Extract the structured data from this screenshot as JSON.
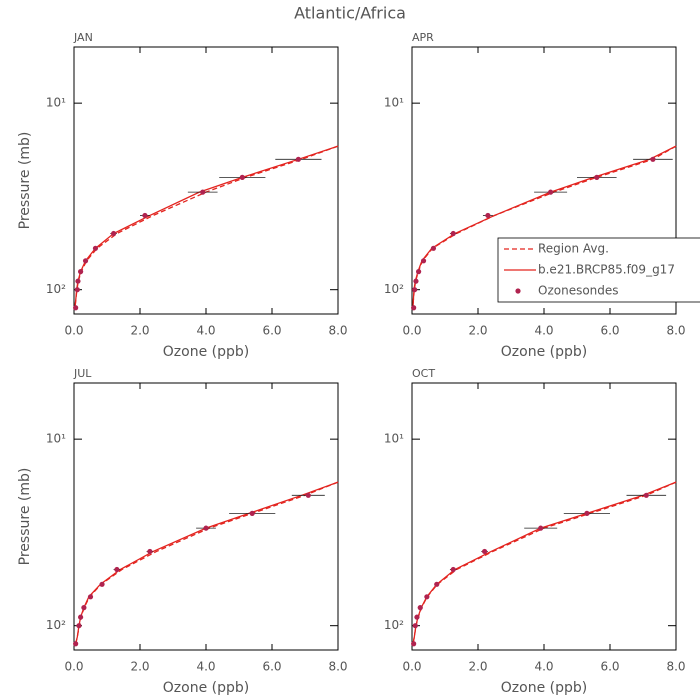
{
  "title": "Atlantic/Africa",
  "chart_data": [
    {
      "type": "line",
      "title": "JAN",
      "xlabel": "Ozone (ppb)",
      "ylabel": "Pressure (mb)",
      "log_y": true,
      "xlim": [
        0,
        8
      ],
      "xticks": [
        {
          "value": 0,
          "label": "0.0"
        },
        {
          "value": 2,
          "label": "2.0"
        },
        {
          "value": 4,
          "label": "4.0"
        },
        {
          "value": 6,
          "label": "6.0"
        },
        {
          "value": 8,
          "label": "8.0"
        }
      ],
      "ylim": [
        135,
        5
      ],
      "yticks": [
        {
          "value": 10,
          "label": "10¹"
        },
        {
          "value": 100,
          "label": "10²"
        }
      ],
      "series": [
        {
          "style": "dashed",
          "color": "#e3241f",
          "x": [
            8.0,
            6.9,
            5.2,
            4.0,
            2.4,
            1.3,
            0.7,
            0.38,
            0.22,
            0.13,
            0.09,
            0.05,
            0.03
          ],
          "values": [
            17,
            20,
            25,
            30,
            40,
            50,
            60,
            70,
            80,
            90,
            100,
            115,
            125
          ]
        },
        {
          "style": "solid",
          "color": "#e3241f",
          "x": [
            8.0,
            6.8,
            5.1,
            3.8,
            2.3,
            1.2,
            0.65,
            0.35,
            0.2,
            0.12,
            0.08,
            0.05,
            0.03
          ],
          "values": [
            17,
            20,
            25,
            30,
            40,
            50,
            60,
            70,
            80,
            90,
            100,
            115,
            125
          ]
        },
        {
          "style": "markers",
          "color": "#b0234f",
          "x": [
            6.8,
            5.1,
            3.9,
            2.15,
            1.2,
            0.65,
            0.35,
            0.2,
            0.12,
            0.1,
            0.05
          ],
          "xerr": [
            0.7,
            0.7,
            0.45,
            0.15,
            0.1,
            0.05,
            0.05,
            0.05,
            0.05,
            0.05,
            0.05
          ],
          "values": [
            20,
            25,
            30,
            40,
            50,
            60,
            70,
            80,
            90,
            100,
            125
          ]
        }
      ]
    },
    {
      "type": "line",
      "title": "APR",
      "xlabel": "Ozone (ppb)",
      "log_y": true,
      "legend": "lower right",
      "xlim": [
        0,
        8
      ],
      "xticks": [
        {
          "value": 0,
          "label": "0.0"
        },
        {
          "value": 2,
          "label": "2.0"
        },
        {
          "value": 4,
          "label": "4.0"
        },
        {
          "value": 6,
          "label": "6.0"
        },
        {
          "value": 8,
          "label": "8.0"
        }
      ],
      "ylim": [
        135,
        5
      ],
      "yticks": [
        {
          "value": 10,
          "label": "10¹"
        },
        {
          "value": 100,
          "label": "10²"
        }
      ],
      "series": [
        {
          "name": "Region Avg.",
          "style": "dashed",
          "color": "#e3241f",
          "x": [
            8.0,
            7.3,
            5.6,
            4.3,
            2.5,
            1.35,
            0.62,
            0.32,
            0.19,
            0.11,
            0.07,
            0.04,
            0.03
          ],
          "values": [
            17,
            20,
            25,
            30,
            40,
            50,
            60,
            70,
            80,
            90,
            100,
            115,
            125
          ]
        },
        {
          "name": "b.e21.BRCP85.f09_g17",
          "style": "solid",
          "color": "#e3241f",
          "x": [
            8.0,
            7.2,
            5.5,
            4.2,
            2.5,
            1.3,
            0.6,
            0.3,
            0.18,
            0.1,
            0.06,
            0.04,
            0.03
          ],
          "values": [
            17,
            20,
            25,
            30,
            40,
            50,
            60,
            70,
            80,
            90,
            100,
            115,
            125
          ]
        },
        {
          "name": "Ozonesondes",
          "style": "markers",
          "color": "#b0234f",
          "x": [
            7.3,
            5.6,
            4.2,
            2.3,
            1.25,
            0.65,
            0.35,
            0.2,
            0.12,
            0.08,
            0.05
          ],
          "xerr": [
            0.6,
            0.6,
            0.5,
            0.15,
            0.1,
            0.05,
            0.05,
            0.05,
            0.05,
            0.05,
            0.05
          ],
          "values": [
            20,
            25,
            30,
            40,
            50,
            60,
            70,
            80,
            90,
            100,
            125
          ]
        }
      ]
    },
    {
      "type": "line",
      "title": "JUL",
      "xlabel": "Ozone (ppb)",
      "ylabel": "Pressure (mb)",
      "log_y": true,
      "xlim": [
        0,
        8
      ],
      "xticks": [
        {
          "value": 0,
          "label": "0.0"
        },
        {
          "value": 2,
          "label": "2.0"
        },
        {
          "value": 4,
          "label": "4.0"
        },
        {
          "value": 6,
          "label": "6.0"
        },
        {
          "value": 8,
          "label": "8.0"
        }
      ],
      "ylim": [
        135,
        5
      ],
      "yticks": [
        {
          "value": 10,
          "label": "10¹"
        },
        {
          "value": 100,
          "label": "10²"
        }
      ],
      "series": [
        {
          "style": "dashed",
          "color": "#e3241f",
          "x": [
            8.0,
            7.0,
            5.4,
            4.1,
            2.5,
            1.45,
            0.82,
            0.47,
            0.31,
            0.21,
            0.16,
            0.1,
            0.05
          ],
          "values": [
            17,
            20,
            25,
            30,
            40,
            50,
            60,
            70,
            80,
            90,
            100,
            115,
            125
          ]
        },
        {
          "style": "solid",
          "color": "#e3241f",
          "x": [
            8.0,
            6.9,
            5.3,
            4.0,
            2.4,
            1.4,
            0.8,
            0.45,
            0.3,
            0.2,
            0.15,
            0.1,
            0.05
          ],
          "values": [
            17,
            20,
            25,
            30,
            40,
            50,
            60,
            70,
            80,
            90,
            100,
            115,
            125
          ]
        },
        {
          "style": "markers",
          "color": "#b0234f",
          "x": [
            7.1,
            5.4,
            4.0,
            2.3,
            1.3,
            0.85,
            0.5,
            0.3,
            0.2,
            0.15,
            0.05
          ],
          "xerr": [
            0.5,
            0.7,
            0.3,
            0.1,
            0.1,
            0.05,
            0.05,
            0.05,
            0.05,
            0.05,
            0.05
          ],
          "values": [
            20,
            25,
            30,
            40,
            50,
            60,
            70,
            80,
            90,
            100,
            125
          ]
        }
      ]
    },
    {
      "type": "line",
      "title": "OCT",
      "xlabel": "Ozone (ppb)",
      "log_y": true,
      "xlim": [
        0,
        8
      ],
      "xticks": [
        {
          "value": 0,
          "label": "0.0"
        },
        {
          "value": 2,
          "label": "2.0"
        },
        {
          "value": 4,
          "label": "4.0"
        },
        {
          "value": 6,
          "label": "6.0"
        },
        {
          "value": 8,
          "label": "8.0"
        }
      ],
      "ylim": [
        135,
        5
      ],
      "yticks": [
        {
          "value": 10,
          "label": "10¹"
        },
        {
          "value": 100,
          "label": "10²"
        }
      ],
      "series": [
        {
          "style": "dashed",
          "color": "#e3241f",
          "x": [
            8.0,
            7.1,
            5.4,
            4.0,
            2.45,
            1.35,
            0.77,
            0.46,
            0.29,
            0.19,
            0.12,
            0.07,
            0.03
          ],
          "values": [
            17,
            20,
            25,
            30,
            40,
            50,
            60,
            70,
            80,
            90,
            100,
            115,
            125
          ]
        },
        {
          "style": "solid",
          "color": "#e3241f",
          "x": [
            8.0,
            7.0,
            5.3,
            3.9,
            2.4,
            1.3,
            0.75,
            0.45,
            0.28,
            0.18,
            0.12,
            0.07,
            0.03
          ],
          "values": [
            17,
            20,
            25,
            30,
            40,
            50,
            60,
            70,
            80,
            90,
            100,
            115,
            125
          ]
        },
        {
          "style": "markers",
          "color": "#b0234f",
          "x": [
            7.1,
            5.3,
            3.9,
            2.2,
            1.25,
            0.75,
            0.45,
            0.25,
            0.15,
            0.1,
            0.05
          ],
          "xerr": [
            0.6,
            0.7,
            0.5,
            0.1,
            0.1,
            0.05,
            0.05,
            0.05,
            0.05,
            0.05,
            0.05
          ],
          "values": [
            20,
            25,
            30,
            40,
            50,
            60,
            70,
            80,
            90,
            100,
            125
          ]
        }
      ]
    }
  ]
}
